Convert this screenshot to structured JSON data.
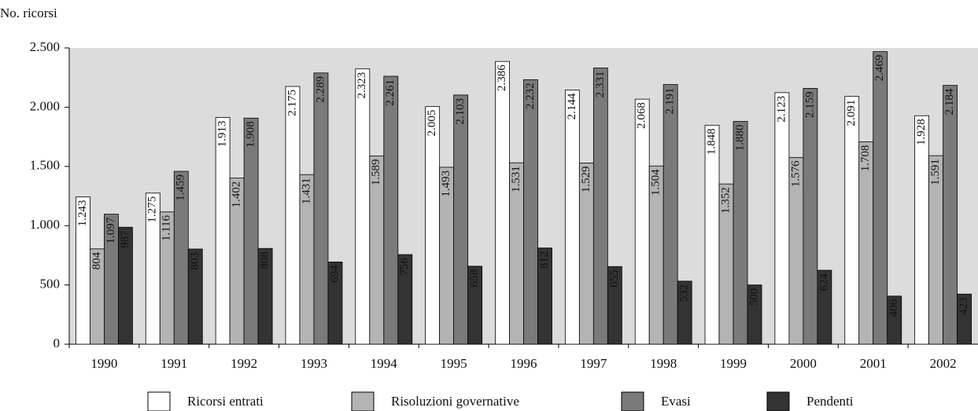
{
  "chart_data": {
    "type": "bar",
    "y_label": "No. ricorsi",
    "categories": [
      "1990",
      "1991",
      "1992",
      "1993",
      "1994",
      "1995",
      "1996",
      "1997",
      "1998",
      "1999",
      "2000",
      "2001",
      "2002"
    ],
    "series": [
      {
        "name": "Ricorsi entrati",
        "color": "#ffffff",
        "values": [
          1243,
          1275,
          1913,
          2175,
          2323,
          2005,
          2386,
          2144,
          2068,
          1848,
          2123,
          2091,
          1928
        ],
        "value_labels": [
          "1.243",
          "1.275",
          "1.913",
          "2.175",
          "2.323",
          "2.005",
          "2.386",
          "2.144",
          "2.068",
          "1.848",
          "2.123",
          "2.091",
          "1.928"
        ]
      },
      {
        "name": "Risoluzioni governative",
        "color": "#b4b4b4",
        "values": [
          804,
          1116,
          1402,
          1431,
          1589,
          1493,
          1531,
          1529,
          1504,
          1352,
          1576,
          1708,
          1591
        ],
        "value_labels": [
          "804",
          "1.116",
          "1.402",
          "1.431",
          "1.589",
          "1.493",
          "1.531",
          "1.529",
          "1.504",
          "1.352",
          "1.576",
          "1.708",
          "1.591"
        ]
      },
      {
        "name": "Evasi",
        "color": "#7a7a7a",
        "values": [
          1097,
          1459,
          1908,
          2289,
          2261,
          2103,
          2232,
          2331,
          2191,
          1880,
          2159,
          2469,
          2184
        ],
        "value_labels": [
          "1.097",
          "1.459",
          "1.908",
          "2.289",
          "2.261",
          "2.103",
          "2.232",
          "2.331",
          "2.191",
          "1.880",
          "2.159",
          "2.469",
          "2.184"
        ]
      },
      {
        "name": "Pendenti",
        "color": "#333333",
        "values": [
          987,
          803,
          808,
          694,
          756,
          658,
          812,
          655,
          532,
          500,
          624,
          406,
          423
        ],
        "value_labels": [
          "987",
          "803",
          "808",
          "694",
          "756",
          "658",
          "812",
          "655",
          "532",
          "500",
          "624",
          "406",
          "423"
        ]
      }
    ],
    "ylim": [
      0,
      2500
    ],
    "yticks": [
      0,
      500,
      {
        "value": 1000,
        "label": "1.000"
      },
      {
        "value": 1500,
        "label": "1.500"
      },
      {
        "value": 2000,
        "label": "2.000"
      },
      {
        "value": 2500,
        "label": "2.500"
      }
    ],
    "grid": false
  }
}
